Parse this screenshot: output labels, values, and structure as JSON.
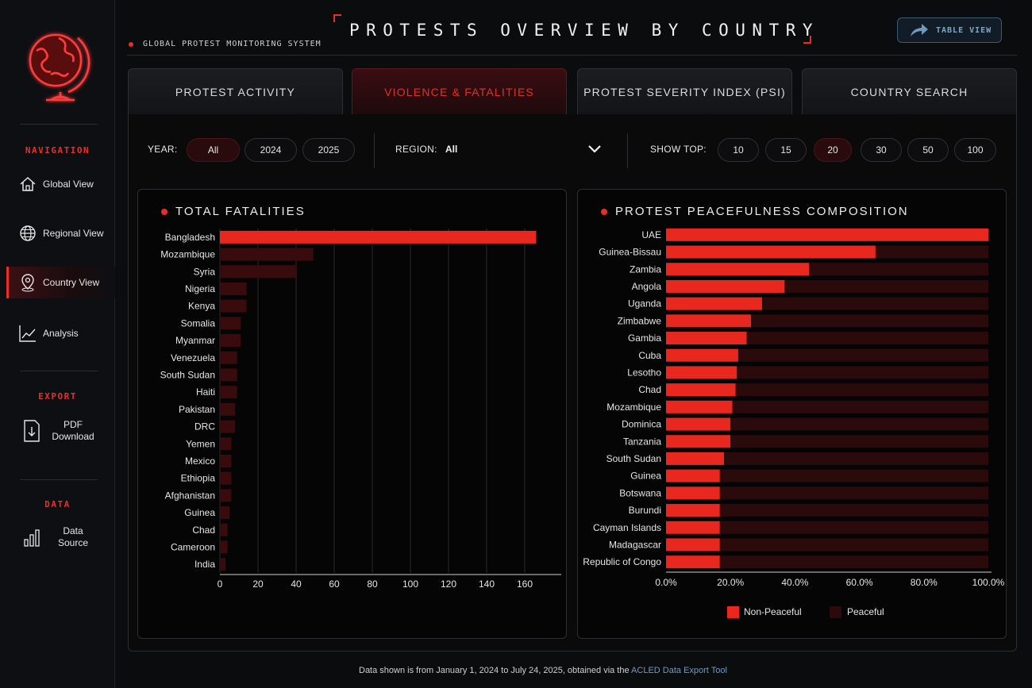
{
  "sidebar": {
    "navigation_heading": "NAVIGATION",
    "nav_items": [
      {
        "label": "Global View",
        "icon": "home-icon"
      },
      {
        "label": "Regional View",
        "icon": "globe-icon"
      },
      {
        "label": "Country View",
        "icon": "map-pin-icon"
      },
      {
        "label": "Analysis",
        "icon": "line-chart-icon"
      }
    ],
    "export_heading": "EXPORT",
    "export_item": {
      "label_line1": "PDF",
      "label_line2": "Download"
    },
    "data_heading": "DATA",
    "data_item": {
      "label_line1": "Data",
      "label_line2": "Source"
    }
  },
  "header": {
    "subtitle": "GLOBAL PROTEST MONITORING SYSTEM",
    "title": "PROTESTS OVERVIEW BY COUNTRY",
    "table_view_label": "TABLE VIEW"
  },
  "tabs": [
    {
      "label": "PROTEST ACTIVITY",
      "active": false
    },
    {
      "label": "VIOLENCE & FATALITIES",
      "active": true
    },
    {
      "label": "PROTEST SEVERITY INDEX (PSI)",
      "active": false
    },
    {
      "label": "COUNTRY SEARCH",
      "active": false
    }
  ],
  "filters": {
    "year_label": "YEAR:",
    "year_options": [
      "All",
      "2024",
      "2025"
    ],
    "year_selected": "All",
    "region_label": "REGION:",
    "region_value": "All",
    "show_top_label": "SHOW TOP:",
    "show_top_options": [
      "10",
      "15",
      "20",
      "30",
      "50",
      "100"
    ],
    "show_top_selected": "20"
  },
  "colors": {
    "accent": "#e5302a",
    "bar_highlight": "#e8281e",
    "bar_muted": "#3a0b0c",
    "peaceful": "#2a0a0b"
  },
  "chart_data": [
    {
      "type": "bar",
      "orientation": "horizontal",
      "title": "TOTAL FATALITIES",
      "categories": [
        "Bangladesh",
        "Mozambique",
        "Syria",
        "Nigeria",
        "Kenya",
        "Somalia",
        "Myanmar",
        "Venezuela",
        "South Sudan",
        "Haiti",
        "Pakistan",
        "DRC",
        "Yemen",
        "Mexico",
        "Ethiopia",
        "Afghanistan",
        "Guinea",
        "Chad",
        "Cameroon",
        "India"
      ],
      "values": [
        166,
        49,
        40,
        14,
        14,
        11,
        11,
        9,
        9,
        9,
        8,
        8,
        6,
        6,
        6,
        6,
        5,
        4,
        4,
        3
      ],
      "highlighted_index": 0,
      "xlim": [
        0,
        175
      ],
      "xticks": [
        0,
        20,
        40,
        60,
        80,
        100,
        120,
        140,
        160
      ],
      "grid": true
    },
    {
      "type": "bar",
      "orientation": "horizontal",
      "stacked": true,
      "title": "PROTEST PEACEFULNESS COMPOSITION",
      "categories": [
        "UAE",
        "Guinea-Bissau",
        "Zambia",
        "Angola",
        "Uganda",
        "Zimbabwe",
        "Gambia",
        "Cuba",
        "Lesotho",
        "Chad",
        "Mozambique",
        "Dominica",
        "Tanzania",
        "South Sudan",
        "Guinea",
        "Botswana",
        "Burundi",
        "Cayman Islands",
        "Madagascar",
        "Republic of Congo"
      ],
      "series": [
        {
          "name": "Non-Peaceful",
          "values": [
            100,
            65,
            44.4,
            36.8,
            29.8,
            26.4,
            25,
            22.4,
            22,
            21.6,
            20.6,
            20,
            20,
            18,
            16.7,
            16.7,
            16.7,
            16.7,
            16.7,
            16.7
          ]
        },
        {
          "name": "Peaceful",
          "values": [
            0,
            35,
            55.6,
            63.2,
            70.2,
            73.6,
            75,
            77.6,
            78,
            78.4,
            79.4,
            80,
            80,
            82,
            83.3,
            83.3,
            83.3,
            83.3,
            83.3,
            83.3
          ]
        }
      ],
      "xlim": [
        0,
        100
      ],
      "xticks": [
        "0.0%",
        "20.0%",
        "40.0%",
        "60.0%",
        "80.0%",
        "100.0%"
      ],
      "legend_position": "bottom"
    }
  ],
  "footer": {
    "text": "Data shown is from January 1, 2024 to July 24, 2025, obtained via the ",
    "link": "ACLED Data Export Tool"
  }
}
